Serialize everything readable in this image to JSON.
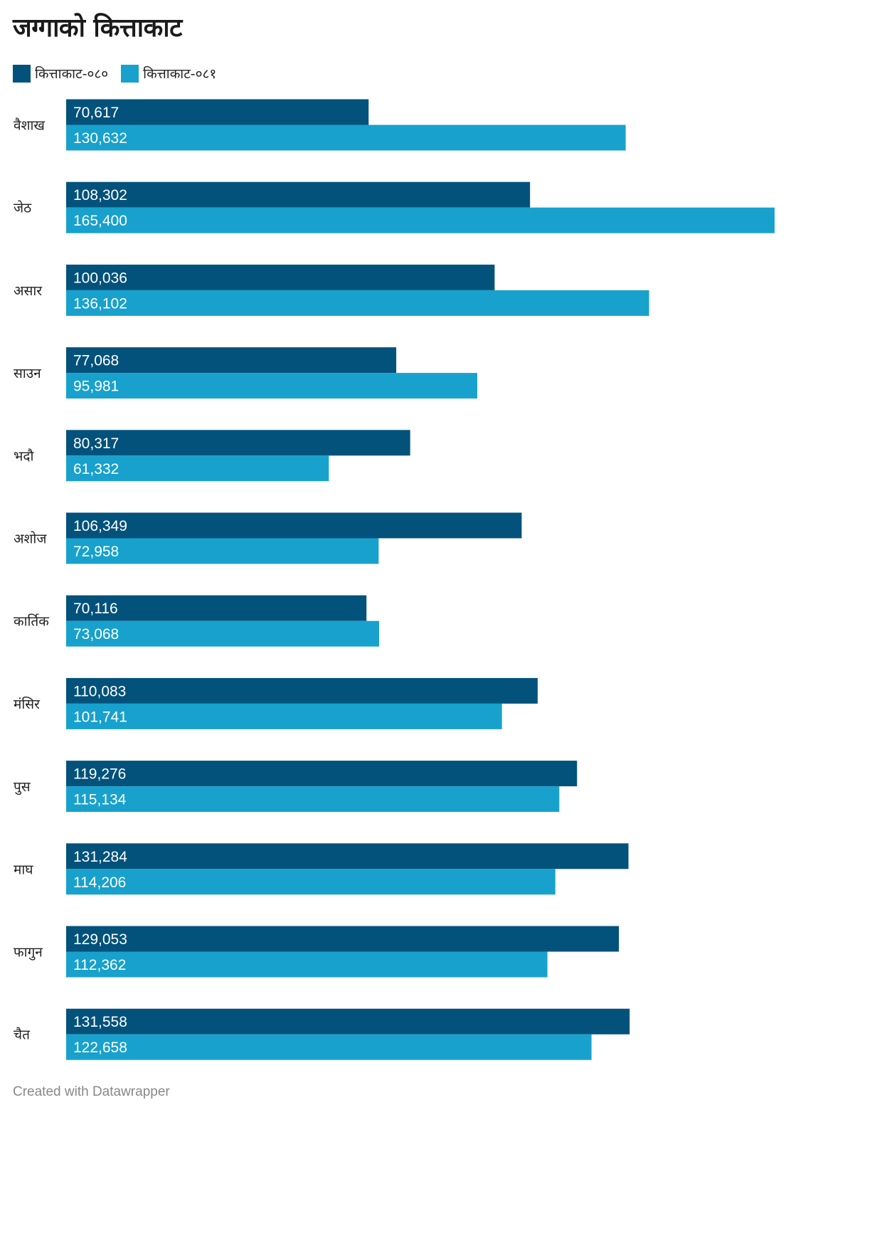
{
  "title": "जग्गाको कित्ताकाट",
  "legend": [
    {
      "label": "कित्ताकाट-०८०",
      "color": "#03527b"
    },
    {
      "label": "कित्ताकाट-०८१",
      "color": "#18a1cd"
    }
  ],
  "footer": "Created with Datawrapper",
  "chart_data": {
    "type": "bar",
    "orientation": "horizontal",
    "title": "जग्गाको कित्ताकाट",
    "categories": [
      "वैशाख",
      "जेठ",
      "असार",
      "साउन",
      "भदौ",
      "अशोज",
      "कार्तिक",
      "मंसिर",
      "पुस",
      "माघ",
      "फागुन",
      "चैत"
    ],
    "series": [
      {
        "name": "कित्ताकाट-०८०",
        "color": "#03527b",
        "values": [
          70617,
          108302,
          100036,
          77068,
          80317,
          106349,
          70116,
          110083,
          119276,
          131284,
          129053,
          131558
        ],
        "labels": [
          "70,617",
          "108,302",
          "100,036",
          "77,068",
          "80,317",
          "106,349",
          "70,116",
          "110,083",
          "119,276",
          "131,284",
          "129,053",
          "131,558"
        ]
      },
      {
        "name": "कित्ताकाट-०८१",
        "color": "#18a1cd",
        "values": [
          130632,
          165400,
          136102,
          95981,
          61332,
          72958,
          73068,
          101741,
          115134,
          114206,
          112362,
          122658
        ],
        "labels": [
          "130,632",
          "165,400",
          "136,102",
          "95,981",
          "61,332",
          "72,958",
          "73,068",
          "101,741",
          "115,134",
          "114,206",
          "112,362",
          "122,658"
        ]
      }
    ],
    "xlim": [
      0,
      165400
    ],
    "grid": false,
    "legend_position": "top-left",
    "data_labels": "inside-left"
  }
}
